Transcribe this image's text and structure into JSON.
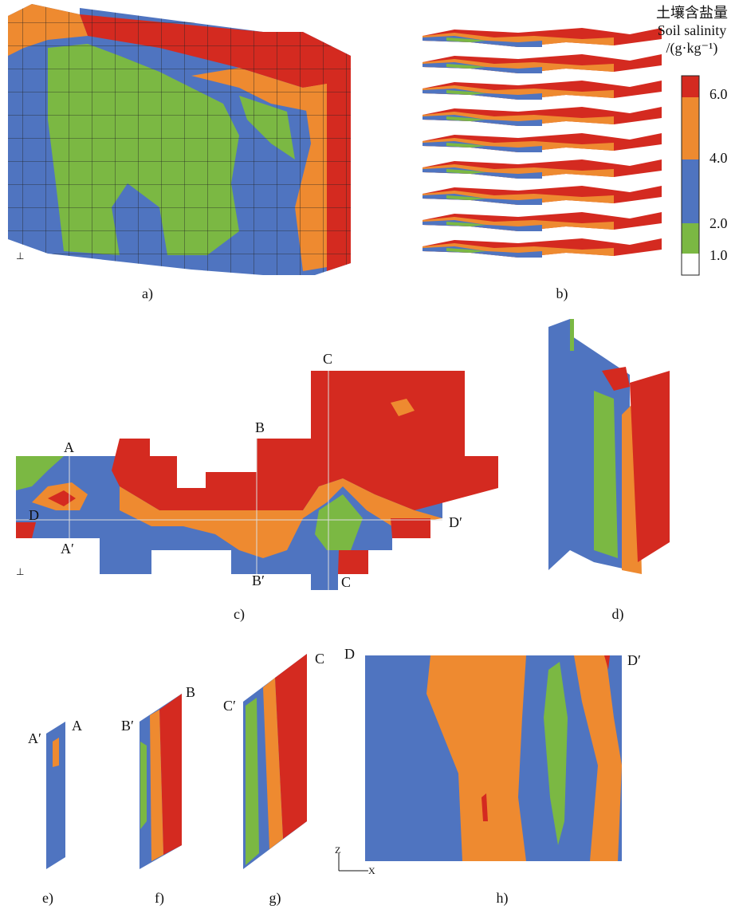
{
  "legend": {
    "title": [
      "土壤含盐量",
      "Soil salinity",
      "/(g·kg⁻¹)"
    ],
    "ticks": [
      "6.0",
      "4.0",
      "2.0",
      "1.0"
    ]
  },
  "panels": [
    "a)",
    "b)",
    "c)",
    "d)",
    "e)",
    "f)",
    "g)",
    "h)"
  ],
  "sections": {
    "c": [
      "A",
      "A′",
      "B",
      "B′",
      "C",
      "C",
      "D",
      "D′"
    ],
    "e": [
      "A′",
      "A"
    ],
    "f": [
      "B′",
      "B"
    ],
    "g": [
      "C′",
      "C"
    ],
    "h": [
      "D",
      "D′"
    ]
  },
  "axis_labels": {
    "h": [
      "Z",
      "X"
    ]
  }
}
